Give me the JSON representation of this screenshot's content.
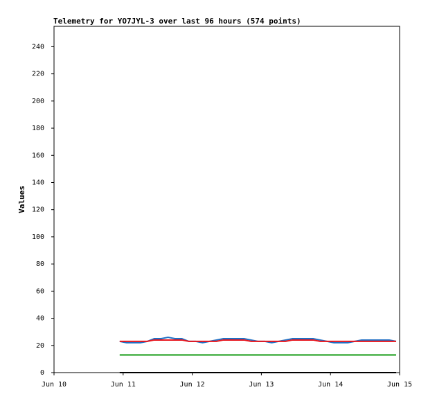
{
  "chart_data": {
    "type": "line",
    "title": "Telemetry for YO7JYL-3 over last 96 hours (574 points)",
    "y_label": "Values",
    "x": [
      10.95,
      11.05,
      11.15,
      11.25,
      11.35,
      11.45,
      11.55,
      11.65,
      11.75,
      11.85,
      11.95,
      12.05,
      12.15,
      12.25,
      12.35,
      12.45,
      12.55,
      12.65,
      12.75,
      12.85,
      12.95,
      13.05,
      13.15,
      13.25,
      13.35,
      13.45,
      13.55,
      13.65,
      13.75,
      13.85,
      13.95,
      14.05,
      14.15,
      14.25,
      14.35,
      14.45,
      14.55,
      14.65,
      14.75,
      14.85,
      14.95
    ],
    "series": [
      {
        "color": "#1f6fc4",
        "values": [
          23,
          22,
          22,
          22,
          23,
          25,
          25,
          26,
          25,
          25,
          23,
          23,
          22,
          23,
          24,
          25,
          25,
          25,
          25,
          24,
          23,
          23,
          22,
          23,
          24,
          25,
          25,
          25,
          25,
          24,
          23,
          22,
          22,
          22,
          23,
          24,
          24,
          24,
          24,
          24,
          23
        ]
      },
      {
        "color": "#e8141c",
        "values": [
          23,
          23,
          23,
          23,
          23,
          24,
          24,
          24,
          24,
          24,
          23,
          23,
          23,
          23,
          23,
          24,
          24,
          24,
          24,
          23,
          23,
          23,
          23,
          23,
          23,
          24,
          24,
          24,
          24,
          23,
          23,
          23,
          23,
          23,
          23,
          23,
          23,
          23,
          23,
          23,
          23
        ]
      },
      {
        "color": "#119911",
        "values": [
          13,
          13,
          13,
          13,
          13,
          13,
          13,
          13,
          13,
          13,
          13,
          13,
          13,
          13,
          13,
          13,
          13,
          13,
          13,
          13,
          13,
          13,
          13,
          13,
          13,
          13,
          13,
          13,
          13,
          13,
          13,
          13,
          13,
          13,
          13,
          13,
          13,
          13,
          13,
          13,
          13
        ]
      },
      {
        "color": "#000000",
        "values": [
          0,
          0,
          0,
          0,
          0,
          0,
          0,
          0,
          0,
          0,
          0,
          0,
          0,
          0,
          0,
          0,
          0,
          0,
          0,
          0,
          0,
          0,
          0,
          0,
          0,
          0,
          0,
          0,
          0,
          0,
          0,
          0,
          0,
          0,
          0,
          0,
          0,
          0,
          0,
          0,
          0
        ]
      }
    ],
    "xlim": [
      10,
      15
    ],
    "xticks": [
      {
        "value": 10,
        "label": "Jun 10"
      },
      {
        "value": 11,
        "label": "Jun 11"
      },
      {
        "value": 12,
        "label": "Jun 12"
      },
      {
        "value": 13,
        "label": "Jun 13"
      },
      {
        "value": 14,
        "label": "Jun 14"
      },
      {
        "value": 15,
        "label": "Jun 15"
      }
    ],
    "ylim": [
      0,
      255
    ],
    "yticks": [
      0,
      20,
      40,
      60,
      80,
      100,
      120,
      140,
      160,
      180,
      200,
      220,
      240
    ]
  }
}
